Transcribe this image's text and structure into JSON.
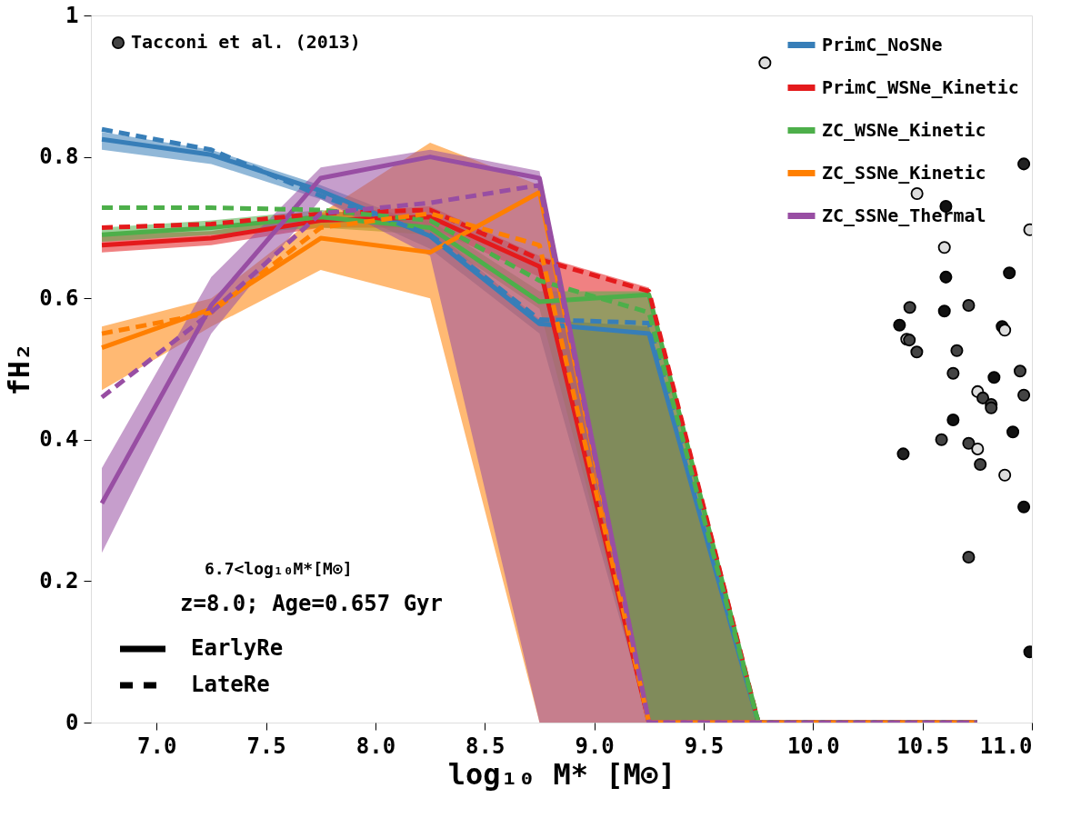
{
  "chart_data": {
    "type": "line",
    "xlabel": "log₁₀ M* [M⊙]",
    "ylabel": "fH₂",
    "x": [
      6.75,
      7.25,
      7.75,
      8.25,
      8.75,
      9.25,
      9.75,
      10.25,
      10.75
    ],
    "xlim": [
      6.7,
      11.0
    ],
    "ylim": [
      0,
      1
    ],
    "xticks": [
      {
        "value": 7,
        "label": "7.0"
      },
      7.5,
      {
        "value": 8,
        "label": "8.0"
      },
      8.5,
      {
        "value": 9,
        "label": "9.0"
      },
      9.5,
      {
        "value": 10,
        "label": "10.0"
      },
      10.5,
      {
        "value": 11,
        "label": "11.0"
      }
    ],
    "yticks": [
      0,
      0.2,
      0.4,
      0.6,
      0.8,
      1
    ],
    "grid": false,
    "legend": "top right",
    "annotations": [
      "6.7<log₁₀M*[M⊙]",
      "z=8.0; Age=0.657 Gyr",
      "EarlyRe",
      "LateRe"
    ],
    "series": [
      {
        "name": "PrimC_NoSNe",
        "color": "#377eb8",
        "line_style": "solid",
        "values": [
          0.825,
          0.803,
          0.752,
          0.688,
          0.564,
          0.55,
          0,
          0,
          0
        ],
        "lower": [
          0.81,
          0.79,
          0.74,
          0.67,
          0.55,
          0,
          0,
          0,
          0
        ],
        "upper": [
          0.835,
          0.81,
          0.76,
          0.7,
          0.57,
          0.56,
          0,
          0,
          0
        ]
      },
      {
        "name": "PrimC_WSNe_Kinetic",
        "color": "#e41a1c",
        "line_style": "solid",
        "values": [
          0.675,
          0.685,
          0.71,
          0.715,
          0.645,
          0,
          0,
          null,
          null
        ],
        "lower": [
          0.665,
          0.675,
          0.7,
          0.7,
          0.63,
          0,
          0,
          0,
          0
        ],
        "upper": [
          0.69,
          0.695,
          0.72,
          0.73,
          0.66,
          0.615,
          0,
          0,
          0
        ]
      },
      {
        "name": "ZC_WSNe_Kinetic",
        "color": "#4daf4a",
        "line_style": "solid",
        "values": [
          0.69,
          0.7,
          0.715,
          0.7,
          0.595,
          0.605,
          0,
          0,
          0
        ],
        "lower": [
          0.68,
          0.69,
          0.7,
          0.69,
          0.585,
          0,
          0,
          0,
          0
        ],
        "upper": [
          0.7,
          0.71,
          0.725,
          0.71,
          0.61,
          0.61,
          0,
          0,
          0
        ]
      },
      {
        "name": "ZC_SSNe_Kinetic",
        "color": "#ff7f00",
        "line_style": "solid",
        "values": [
          0.53,
          0.585,
          0.685,
          0.665,
          0.75,
          0,
          0,
          0,
          0
        ],
        "lower": [
          0.47,
          0.56,
          0.64,
          0.6,
          0,
          0,
          0,
          0,
          0
        ],
        "upper": [
          0.56,
          0.6,
          0.72,
          0.82,
          0.76,
          0,
          0,
          0,
          0
        ]
      },
      {
        "name": "ZC_SSNe_Thermal",
        "color": "#984ea3",
        "line_style": "solid",
        "values": [
          0.31,
          0.59,
          0.77,
          0.8,
          0.77,
          0,
          0,
          0,
          0
        ],
        "lower": [
          0.24,
          0.55,
          0.74,
          0.66,
          0,
          0,
          0,
          0,
          0
        ],
        "upper": [
          0.36,
          0.63,
          0.785,
          0.81,
          0.78,
          0,
          0,
          0,
          0
        ]
      },
      {
        "color": "#377eb8",
        "line_style": "dashed",
        "values": [
          0.839,
          0.81,
          0.745,
          0.69,
          0.57,
          0.565,
          0,
          0,
          0
        ]
      },
      {
        "color": "#e41a1c",
        "line_style": "dashed",
        "values": [
          0.7,
          0.705,
          0.72,
          0.725,
          0.655,
          0.61,
          0,
          0,
          0
        ]
      },
      {
        "color": "#4daf4a",
        "line_style": "dashed",
        "values": [
          0.728,
          0.728,
          0.725,
          0.71,
          0.625,
          0.58,
          0,
          0,
          0
        ]
      },
      {
        "color": "#ff7f00",
        "line_style": "dashed",
        "values": [
          0.55,
          0.58,
          0.7,
          0.72,
          0.675,
          0,
          0,
          0,
          0
        ]
      },
      {
        "color": "#984ea3",
        "line_style": "dashed",
        "values": [
          0.46,
          0.58,
          0.72,
          0.735,
          0.76,
          0,
          0,
          0,
          0
        ]
      },
      {
        "name": "Tacconi et al. (2013)",
        "type": "scatter",
        "marker": "circle",
        "color": "#444444",
        "x": [
          9.78,
          10.963,
          10.475,
          10.607,
          10.6,
          10.99,
          10.607,
          10.897,
          10.442,
          10.6,
          10.711,
          10.395,
          10.428,
          10.44,
          10.474,
          10.864,
          10.876,
          10.657,
          10.64,
          10.827,
          10.946,
          10.752,
          10.776,
          10.814,
          10.814,
          10.963,
          10.64,
          10.913,
          10.587,
          10.711,
          10.752,
          10.764,
          10.412,
          10.876,
          10.963,
          10.711,
          10.99
        ],
        "values": [
          0.933,
          0.79,
          0.748,
          0.73,
          0.672,
          0.697,
          0.63,
          0.636,
          0.587,
          0.582,
          0.59,
          0.562,
          0.542,
          0.541,
          0.524,
          0.56,
          0.555,
          0.526,
          0.494,
          0.488,
          0.497,
          0.468,
          0.459,
          0.45,
          0.445,
          0.463,
          0.428,
          0.411,
          0.4,
          0.395,
          0.387,
          0.365,
          0.38,
          0.35,
          0.305,
          0.234,
          0.1
        ],
        "colors": [
          "#dddddd",
          "#222222",
          "#dddddd",
          "#111111",
          "#dddddd",
          "#dddddd",
          "#111111",
          "#111111",
          "#444444",
          "#111111",
          "#444444",
          "#111111",
          "#dddddd",
          "#444444",
          "#444444",
          "#111111",
          "#dddddd",
          "#444444",
          "#444444",
          "#111111",
          "#444444",
          "#dddddd",
          "#444444",
          "#444444",
          "#444444",
          "#444444",
          "#111111",
          "#111111",
          "#444444",
          "#444444",
          "#dddddd",
          "#444444",
          "#222222",
          "#dddddd",
          "#111111",
          "#444444",
          "#111111"
        ]
      }
    ]
  }
}
